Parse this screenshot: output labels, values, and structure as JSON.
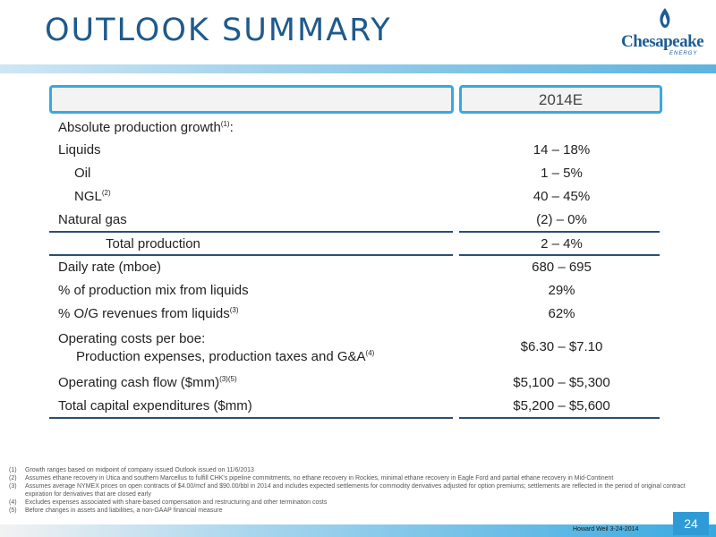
{
  "title": "OUTLOOK SUMMARY",
  "logo": {
    "word": "Chesapeake",
    "sub": "ENERGY"
  },
  "table": {
    "header_value": "2014E",
    "rows": [
      {
        "label": "Absolute production growth",
        "sup": "(1)",
        "suffix": ":",
        "value": ""
      },
      {
        "label": "Liquids",
        "value": "14 – 18%"
      },
      {
        "label": "Oil",
        "value": "1 – 5%"
      },
      {
        "label": "NGL",
        "sup": "(2)",
        "value": "40 – 45%"
      },
      {
        "label": "Natural gas",
        "value": "(2) – 0%"
      },
      {
        "label": "Total production",
        "value": "2 – 4%"
      },
      {
        "label": "Daily rate (mboe)",
        "value": "680 – 695"
      },
      {
        "label": "% of production mix from liquids",
        "value": "29%"
      },
      {
        "label": "% O/G revenues from liquids",
        "sup": "(3)",
        "value": "62%"
      },
      {
        "label": "Operating costs per boe:",
        "label2": "Production expenses, production taxes and G&A",
        "sup": "(4)",
        "value": "$6.30 – $7.10"
      },
      {
        "label": "Operating cash flow ($mm)",
        "sup": "(3)(5)",
        "value": "$5,100 – $5,300"
      },
      {
        "label": "Total capital expenditures ($mm)",
        "value": "$5,200 – $5,600"
      }
    ]
  },
  "footnotes": [
    {
      "num": "(1)",
      "text": "Growth ranges based on midpoint of company issued Outlook issued on 11/6/2013"
    },
    {
      "num": "(2)",
      "text": "Assumes ethane recovery in Utica and southern Marcellus to fulfill CHK's pipeline commitments, no ethane recovery in Rockies, minimal ethane recovery in Eagle Ford and partial ethane recovery in Mid-Continent"
    },
    {
      "num": "(3)",
      "text": "Assumes average NYMEX prices on open contracts of $4.00/mcf and $90.00/bbl in 2014 and includes expected settlements for commodity derivatives adjusted for option premiums; settlements are reflected in the period of original contract expiration for derivatives that are closed early"
    },
    {
      "num": "(4)",
      "text": "Excludes expenses associated with share-based compensation and restructuring and other termination costs"
    },
    {
      "num": "(5)",
      "text": "Before changes in assets and liabilities, a non-GAAP financial measure"
    }
  ],
  "footer": {
    "event": "Howard Weil 3-24-2014",
    "page": "24"
  }
}
